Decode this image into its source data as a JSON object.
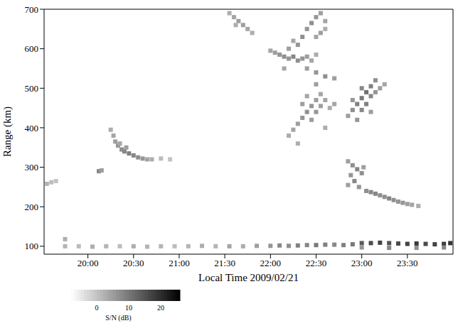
{
  "chart_data": {
    "type": "heatmap",
    "xlabel": "Local Time 2009/02/21",
    "ylabel": "Range (km)",
    "xlim": [
      19.52,
      24.0
    ],
    "xticks": [
      {
        "value": 20,
        "label": "20:00"
      },
      {
        "value": 20.5,
        "label": "20:30"
      },
      {
        "value": 21,
        "label": "21:00"
      },
      {
        "value": 21.5,
        "label": "21:30"
      },
      {
        "value": 22,
        "label": "22:00"
      },
      {
        "value": 22.5,
        "label": "22:30"
      },
      {
        "value": 23,
        "label": "23:00"
      },
      {
        "value": 23.5,
        "label": "23:30"
      }
    ],
    "ylim": [
      80,
      700
    ],
    "yticks": [
      100,
      200,
      300,
      400,
      500,
      600,
      700
    ],
    "colorbar": {
      "label": "S/N (dB)",
      "range": [
        -8,
        26
      ],
      "ticks": [
        0,
        10,
        20
      ]
    },
    "cells": [
      [
        19.55,
        258,
        2
      ],
      [
        19.6,
        262,
        1
      ],
      [
        19.65,
        265,
        0
      ],
      [
        20.12,
        290,
        8
      ],
      [
        20.15,
        292,
        5
      ],
      [
        20.25,
        395,
        3
      ],
      [
        20.28,
        380,
        4
      ],
      [
        20.3,
        365,
        5
      ],
      [
        20.33,
        355,
        6
      ],
      [
        20.37,
        345,
        7
      ],
      [
        20.4,
        340,
        8
      ],
      [
        20.45,
        335,
        9
      ],
      [
        20.5,
        330,
        8
      ],
      [
        20.55,
        325,
        7
      ],
      [
        20.6,
        322,
        6
      ],
      [
        20.65,
        320,
        4
      ],
      [
        20.7,
        320,
        3
      ],
      [
        20.8,
        322,
        1
      ],
      [
        20.9,
        320,
        0
      ],
      [
        20.35,
        360,
        4
      ],
      [
        20.42,
        350,
        5
      ],
      [
        21.55,
        690,
        3
      ],
      [
        21.6,
        680,
        4
      ],
      [
        21.65,
        670,
        5
      ],
      [
        21.7,
        660,
        5
      ],
      [
        21.75,
        650,
        4
      ],
      [
        21.8,
        640,
        3
      ],
      [
        21.62,
        660,
        3
      ],
      [
        22.0,
        595,
        4
      ],
      [
        22.05,
        590,
        5
      ],
      [
        22.1,
        585,
        6
      ],
      [
        22.15,
        580,
        7
      ],
      [
        22.2,
        575,
        6
      ],
      [
        22.25,
        580,
        8
      ],
      [
        22.3,
        570,
        7
      ],
      [
        22.35,
        575,
        6
      ],
      [
        22.4,
        580,
        5
      ],
      [
        22.45,
        570,
        4
      ],
      [
        22.5,
        585,
        3
      ],
      [
        22.2,
        600,
        5
      ],
      [
        22.3,
        610,
        6
      ],
      [
        22.35,
        630,
        7
      ],
      [
        22.4,
        650,
        6
      ],
      [
        22.45,
        665,
        7
      ],
      [
        22.5,
        680,
        6
      ],
      [
        22.55,
        690,
        5
      ],
      [
        22.6,
        670,
        4
      ],
      [
        22.55,
        640,
        5
      ],
      [
        22.25,
        620,
        4
      ],
      [
        22.5,
        630,
        4
      ],
      [
        22.6,
        650,
        3
      ],
      [
        22.15,
        550,
        4
      ],
      [
        22.4,
        550,
        5
      ],
      [
        22.5,
        540,
        6
      ],
      [
        22.6,
        530,
        7
      ],
      [
        22.7,
        525,
        5
      ],
      [
        22.5,
        510,
        5
      ],
      [
        22.2,
        380,
        3
      ],
      [
        22.25,
        395,
        4
      ],
      [
        22.3,
        410,
        5
      ],
      [
        22.35,
        425,
        6
      ],
      [
        22.4,
        440,
        7
      ],
      [
        22.45,
        455,
        6
      ],
      [
        22.5,
        470,
        5
      ],
      [
        22.55,
        485,
        4
      ],
      [
        22.35,
        460,
        5
      ],
      [
        22.4,
        480,
        4
      ],
      [
        22.3,
        360,
        3
      ],
      [
        22.45,
        420,
        5
      ],
      [
        22.5,
        440,
        6
      ],
      [
        22.55,
        455,
        5
      ],
      [
        22.6,
        470,
        4
      ],
      [
        22.65,
        450,
        3
      ],
      [
        22.7,
        460,
        4
      ],
      [
        22.6,
        400,
        3
      ],
      [
        22.85,
        430,
        5
      ],
      [
        22.9,
        445,
        7
      ],
      [
        22.95,
        460,
        9
      ],
      [
        23.0,
        475,
        10
      ],
      [
        23.05,
        490,
        11
      ],
      [
        23.1,
        505,
        9
      ],
      [
        23.15,
        520,
        7
      ],
      [
        23.0,
        445,
        8
      ],
      [
        23.05,
        460,
        9
      ],
      [
        23.1,
        480,
        8
      ],
      [
        22.95,
        420,
        6
      ],
      [
        23.15,
        490,
        6
      ],
      [
        23.2,
        500,
        5
      ],
      [
        23.1,
        440,
        5
      ],
      [
        22.9,
        470,
        6
      ],
      [
        23.0,
        500,
        8
      ],
      [
        23.25,
        510,
        4
      ],
      [
        22.85,
        315,
        5
      ],
      [
        22.9,
        305,
        7
      ],
      [
        22.95,
        295,
        8
      ],
      [
        23.0,
        285,
        7
      ],
      [
        22.88,
        280,
        6
      ],
      [
        22.92,
        265,
        8
      ],
      [
        22.97,
        250,
        6
      ],
      [
        22.85,
        255,
        5
      ],
      [
        23.02,
        300,
        5
      ],
      [
        23.05,
        240,
        7
      ],
      [
        23.1,
        237,
        8
      ],
      [
        23.15,
        233,
        8
      ],
      [
        23.2,
        229,
        7
      ],
      [
        23.25,
        225,
        7
      ],
      [
        23.3,
        221,
        8
      ],
      [
        23.35,
        217,
        7
      ],
      [
        23.4,
        213,
        6
      ],
      [
        23.45,
        210,
        6
      ],
      [
        23.5,
        207,
        5
      ],
      [
        23.55,
        205,
        4
      ],
      [
        23.62,
        202,
        3
      ],
      [
        19.75,
        118,
        3
      ],
      [
        19.75,
        100,
        2
      ],
      [
        19.9,
        100,
        1
      ],
      [
        20.05,
        99,
        3
      ],
      [
        20.2,
        100,
        2
      ],
      [
        20.35,
        100,
        1
      ],
      [
        20.5,
        100,
        3
      ],
      [
        20.65,
        99,
        2
      ],
      [
        20.8,
        100,
        2
      ],
      [
        20.95,
        100,
        1
      ],
      [
        21.1,
        100,
        2
      ],
      [
        21.25,
        101,
        3
      ],
      [
        21.4,
        100,
        2
      ],
      [
        21.55,
        100,
        4
      ],
      [
        21.7,
        100,
        3
      ],
      [
        21.85,
        101,
        5
      ],
      [
        22.0,
        101,
        6
      ],
      [
        22.1,
        102,
        8
      ],
      [
        22.2,
        101,
        7
      ],
      [
        22.3,
        102,
        9
      ],
      [
        22.4,
        103,
        8
      ],
      [
        22.5,
        103,
        10
      ],
      [
        22.6,
        104,
        9
      ],
      [
        22.7,
        104,
        8
      ],
      [
        22.8,
        103,
        9
      ],
      [
        22.9,
        105,
        10
      ],
      [
        23.0,
        108,
        14
      ],
      [
        23.1,
        108,
        16
      ],
      [
        23.2,
        109,
        17
      ],
      [
        23.3,
        108,
        15
      ],
      [
        23.4,
        107,
        16
      ],
      [
        23.5,
        106,
        17
      ],
      [
        23.6,
        107,
        18
      ],
      [
        23.7,
        106,
        16
      ],
      [
        23.8,
        105,
        17
      ],
      [
        23.9,
        106,
        18
      ],
      [
        23.97,
        108,
        19
      ],
      [
        23.0,
        97,
        6
      ],
      [
        23.3,
        96,
        8
      ],
      [
        23.6,
        96,
        7
      ],
      [
        23.9,
        97,
        8
      ]
    ]
  }
}
